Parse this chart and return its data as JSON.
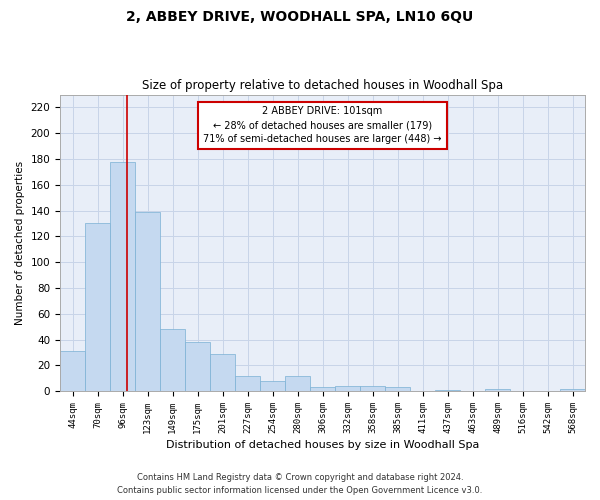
{
  "title": "2, ABBEY DRIVE, WOODHALL SPA, LN10 6QU",
  "subtitle": "Size of property relative to detached houses in Woodhall Spa",
  "xlabel": "Distribution of detached houses by size in Woodhall Spa",
  "ylabel": "Number of detached properties",
  "footer_line1": "Contains HM Land Registry data © Crown copyright and database right 2024.",
  "footer_line2": "Contains public sector information licensed under the Open Government Licence v3.0.",
  "categories": [
    "44sqm",
    "70sqm",
    "96sqm",
    "123sqm",
    "149sqm",
    "175sqm",
    "201sqm",
    "227sqm",
    "254sqm",
    "280sqm",
    "306sqm",
    "332sqm",
    "358sqm",
    "385sqm",
    "411sqm",
    "437sqm",
    "463sqm",
    "489sqm",
    "516sqm",
    "542sqm",
    "568sqm"
  ],
  "values": [
    31,
    130,
    178,
    139,
    48,
    38,
    29,
    12,
    8,
    12,
    3,
    4,
    4,
    3,
    0,
    1,
    0,
    2,
    0,
    0,
    2
  ],
  "bar_color": "#c5d9f0",
  "bar_edge_color": "#7ab0d4",
  "grid_color": "#c8d4e8",
  "background_color": "#e8eef8",
  "annotation_text": "2 ABBEY DRIVE: 101sqm\n← 28% of detached houses are smaller (179)\n71% of semi-detached houses are larger (448) →",
  "annotation_box_color": "#ffffff",
  "annotation_box_edge": "#cc0000",
  "vline_color": "#cc0000",
  "vline_x_index": 2.19,
  "ylim": [
    0,
    230
  ],
  "yticks": [
    0,
    20,
    40,
    60,
    80,
    100,
    120,
    140,
    160,
    180,
    200,
    220
  ]
}
